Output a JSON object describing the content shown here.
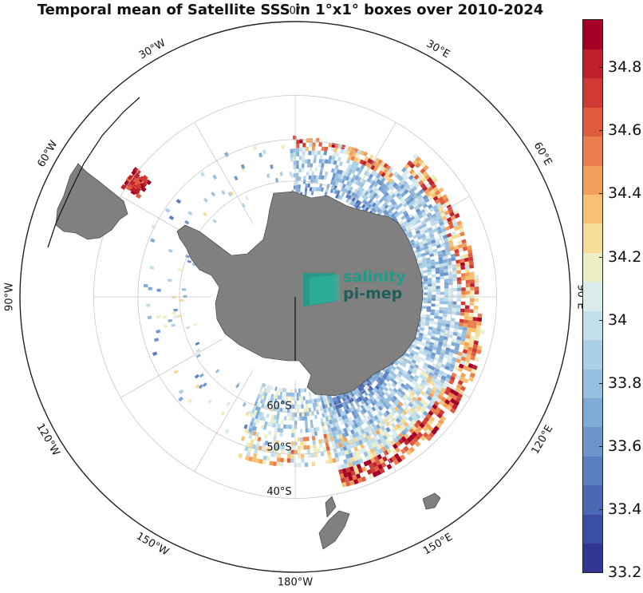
{
  "title": "Temporal mean of Satellite SSS in 1°x1° boxes over 2010-2024",
  "map": {
    "projection": "south polar stereographic",
    "lat_circles": [
      {
        "label": "60°S"
      },
      {
        "label": "50°S"
      },
      {
        "label": "40°S"
      }
    ],
    "lon_labels": [
      {
        "label": "0°",
        "lon": 0
      },
      {
        "label": "30°E",
        "lon": 30
      },
      {
        "label": "60°E",
        "lon": 60
      },
      {
        "label": "90°E",
        "lon": 90
      },
      {
        "label": "120°E",
        "lon": 120
      },
      {
        "label": "150°E",
        "lon": 150
      },
      {
        "label": "180°W",
        "lon": 180
      },
      {
        "label": "150°W",
        "lon": -150
      },
      {
        "label": "120°W",
        "lon": -120
      },
      {
        "label": "90°W",
        "lon": -90
      },
      {
        "label": "60°W",
        "lon": -60
      },
      {
        "label": "30°W",
        "lon": -30
      }
    ],
    "land_color": "#808080",
    "grid_color": "#c8c8c8"
  },
  "colorbar": {
    "min": 33.2,
    "max": 34.95,
    "ticks": [
      {
        "value": 33.2,
        "label": "33.2"
      },
      {
        "value": 33.4,
        "label": "33.4"
      },
      {
        "value": 33.6,
        "label": "33.6"
      },
      {
        "value": 33.8,
        "label": "33.8"
      },
      {
        "value": 34.0,
        "label": "34"
      },
      {
        "value": 34.2,
        "label": "34.2"
      },
      {
        "value": 34.4,
        "label": "34.4"
      },
      {
        "value": 34.6,
        "label": "34.6"
      },
      {
        "value": 34.8,
        "label": "34.8"
      }
    ],
    "colors": [
      "#313695",
      "#3a4fa3",
      "#4a68b3",
      "#5b7fc0",
      "#6d95cc",
      "#80aad6",
      "#95bee0",
      "#abcfe6",
      "#c4dfec",
      "#dbebec",
      "#eeeec4",
      "#f6dc96",
      "#f7c072",
      "#f39f5c",
      "#ea7e4c",
      "#de5c3f",
      "#cf3b34",
      "#bd1f2c",
      "#a50026"
    ]
  },
  "logo": {
    "line1": "salinity",
    "line2": "pi-mep",
    "color_teal": "#1a9e8a",
    "color_dark": "#205e5a"
  }
}
